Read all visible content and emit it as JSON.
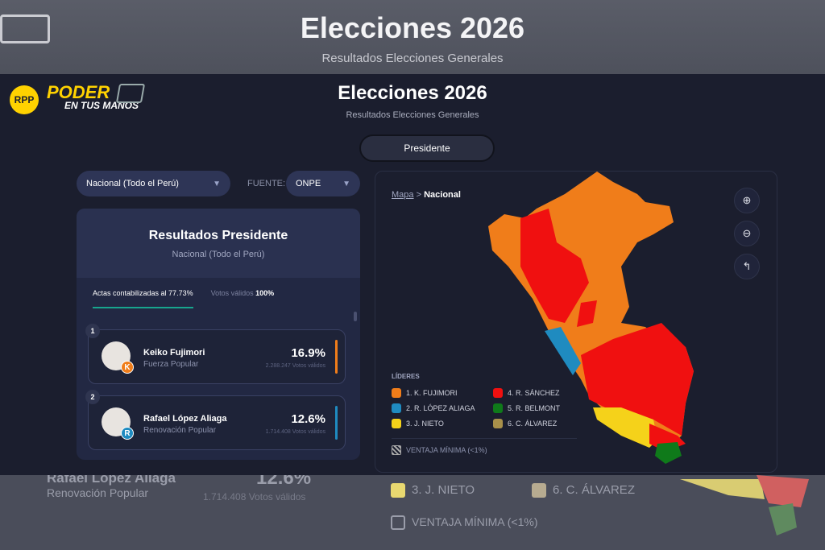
{
  "background": {
    "title": "Elecciones 2026",
    "subtitle": "Resultados Elecciones Generales",
    "echo": {
      "name": "Rafael López Aliaga",
      "party": "Renovación Popular",
      "pct": "12.6%",
      "votes": "1.714.408 Votos válidos",
      "legend3": "3. J. NIETO",
      "legend6": "6. C. ÁLVAREZ",
      "min": "VENTAJA MÍNIMA (<1%)"
    }
  },
  "header": {
    "logo_rpp": "RPP",
    "logo_poder": "PODER",
    "logo_sub": "EN TUS MANOS",
    "title": "Elecciones 2026",
    "subtitle": "Resultados Elecciones Generales",
    "tab": "Presidente"
  },
  "filters": {
    "region": "Nacional (Todo el Perú)",
    "source_label": "FUENTE:",
    "source": "ONPE"
  },
  "results": {
    "title": "Resultados Presidente",
    "scope": "Nacional (Todo el Perú)",
    "tab_actas": "Actas contabilizadas al 77.73%",
    "tab_votos": "Votos válidos",
    "tab_votos_value": "100%",
    "candidates": [
      {
        "rank": "1",
        "name": "Keiko Fujimori",
        "party": "Fuerza Popular",
        "pct": "16.9%",
        "votes": "2.288.247 Votos válidos",
        "badge": "K",
        "color": "#f07d1a"
      },
      {
        "rank": "2",
        "name": "Rafael López Aliaga",
        "party": "Renovación Popular",
        "pct": "12.6%",
        "votes": "1.714.408 Votos válidos",
        "badge": "R",
        "color": "#1f8bc0"
      }
    ]
  },
  "map": {
    "crumb_root": "Mapa",
    "crumb_sep": ">",
    "crumb_current": "Nacional",
    "legend_title": "LÍDERES",
    "legend": [
      {
        "label": "1. K. FUJIMORI",
        "color": "#f07d1a"
      },
      {
        "label": "4. R. SÁNCHEZ",
        "color": "#f01010"
      },
      {
        "label": "2. R. LÓPEZ ALIAGA",
        "color": "#1f8bc0"
      },
      {
        "label": "5. R. BELMONT",
        "color": "#0f7a1a"
      },
      {
        "label": "3. J. NIETO",
        "color": "#f5d21a"
      },
      {
        "label": "6. C. ÁLVAREZ",
        "color": "#a8904a"
      }
    ],
    "min_label": "VENTAJA MÍNIMA (<1%)",
    "controls": [
      "zoom-in-icon",
      "zoom-out-icon",
      "reset-icon"
    ]
  }
}
